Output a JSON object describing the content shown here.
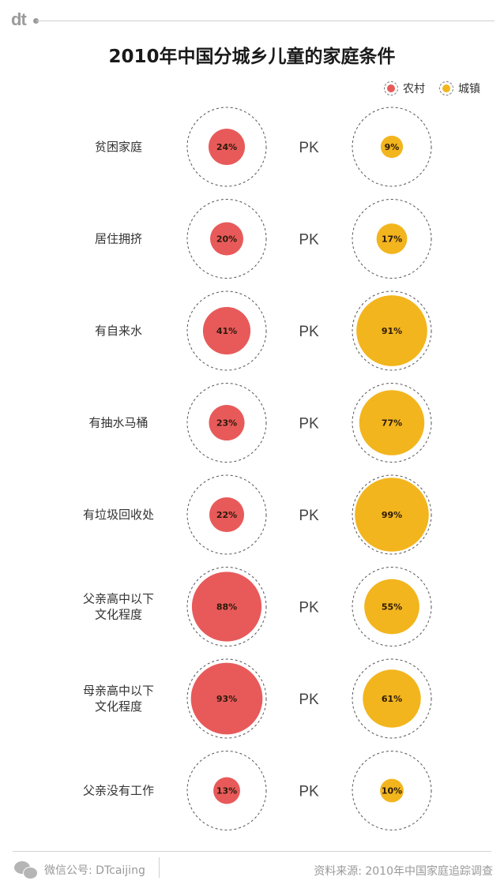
{
  "header": {
    "logo": "dt"
  },
  "title": "2010年中国分城乡儿童的家庭条件",
  "legend": [
    {
      "label": "农村",
      "color": "#e85a5a"
    },
    {
      "label": "城镇",
      "color": "#f2b51d"
    }
  ],
  "chart_data": {
    "type": "proportional-circles",
    "title": "2010年中国分城乡儿童的家庭条件",
    "separator": "PK",
    "series": [
      {
        "name": "农村",
        "color": "#e85a5a"
      },
      {
        "name": "城镇",
        "color": "#f2b51d"
      }
    ],
    "rows": [
      {
        "label": [
          "贫困家庭"
        ],
        "rural": 24,
        "urban": 9
      },
      {
        "label": [
          "居住拥挤"
        ],
        "rural": 20,
        "urban": 17
      },
      {
        "label": [
          "有自来水"
        ],
        "rural": 41,
        "urban": 91
      },
      {
        "label": [
          "有抽水马桶"
        ],
        "rural": 23,
        "urban": 77
      },
      {
        "label": [
          "有垃圾回收处"
        ],
        "rural": 22,
        "urban": 99
      },
      {
        "label": [
          "父亲高中以下",
          "文化程度"
        ],
        "rural": 88,
        "urban": 55
      },
      {
        "label": [
          "母亲高中以下",
          "文化程度"
        ],
        "rural": 93,
        "urban": 61
      },
      {
        "label": [
          "父亲没有工作"
        ],
        "rural": 13,
        "urban": 10
      }
    ]
  },
  "footer": {
    "wechat_label": "微信公号: DTcaijing",
    "source": "资料来源: 2010年中国家庭追踪调查"
  }
}
